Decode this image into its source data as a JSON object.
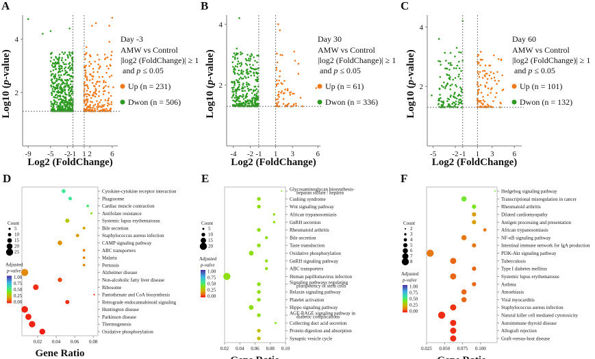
{
  "chart_data": [
    {
      "panel": "A",
      "type": "scatter",
      "title": "Day -3",
      "subtitle": "AMW vs Control",
      "criteria_line1": "|log2 (FoldChange)| ≥ 1",
      "criteria_line2": "and p ≤ 0.05",
      "xlabel": "Log2 (FoldChange)",
      "ylabel": "Log10 (p-value)",
      "xticks": [
        "-9",
        "-5",
        "-2",
        "-1",
        "1",
        "2",
        "6"
      ],
      "xtick_values": [
        -9,
        -5,
        -2,
        -1,
        1,
        2,
        6
      ],
      "yticks": [
        "2",
        "4"
      ],
      "ytick_values": [
        2,
        4
      ],
      "xlim": [
        -10,
        7
      ],
      "ylim": [
        0,
        4.9
      ],
      "threshold_x": [
        -1,
        1
      ],
      "threshold_y": 1.3,
      "legend": [
        {
          "label": "Up (n = 231)",
          "color": "#f07a1a"
        },
        {
          "label": "Dwon (n = 506)",
          "color": "#2e9a22"
        }
      ],
      "up_count": 231,
      "down_count": 506,
      "down_xrange": [
        -5,
        -1
      ],
      "up_xrange": [
        1,
        6
      ],
      "outliers_down": [
        [
          -9,
          4.75
        ],
        [
          -6.4,
          4.2
        ],
        [
          -5,
          4.3
        ],
        [
          -1.6,
          4.4
        ],
        [
          -4.9,
          3.45
        ],
        [
          -1.1,
          3.45
        ]
      ],
      "outliers_up": [
        [
          1.4,
          3.7
        ],
        [
          2.4,
          4.5
        ],
        [
          3.1,
          4.6
        ],
        [
          5.5,
          4.5
        ],
        [
          6,
          4.8
        ],
        [
          5.5,
          3.9
        ],
        [
          6.2,
          2.2
        ],
        [
          5.7,
          3
        ]
      ]
    },
    {
      "panel": "B",
      "type": "scatter",
      "title": "Day 30",
      "subtitle": "AMW vs Control",
      "criteria_line1": "|log2 (FoldChange)| ≥ 1",
      "criteria_line2": "and p ≤ 0.05",
      "xlabel": "Log2 (FoldChange)",
      "ylabel": "Log10 (p-value)",
      "xticks": [
        "-4",
        "-2",
        "-1",
        "1",
        "3",
        "6"
      ],
      "xtick_values": [
        -4,
        -2,
        -1,
        1,
        3,
        6
      ],
      "yticks": [
        "2",
        "4"
      ],
      "ytick_values": [
        2,
        4
      ],
      "xlim": [
        -4.8,
        6.3
      ],
      "ylim": [
        0,
        4.3
      ],
      "threshold_x": [
        -1,
        1
      ],
      "threshold_y": 1.3,
      "legend": [
        {
          "label": "Up (n = 61)",
          "color": "#f07a1a"
        },
        {
          "label": "Dwon (n = 336)",
          "color": "#2e9a22"
        }
      ],
      "up_count": 61,
      "down_count": 336,
      "down_xrange": [
        -4.2,
        -1
      ],
      "up_xrange": [
        1,
        4.2
      ],
      "outliers_down": [
        [
          -3.3,
          4.2
        ],
        [
          -3.6,
          3.2
        ],
        [
          -4.2,
          2.1
        ]
      ],
      "outliers_up": [
        [
          1.3,
          4
        ],
        [
          1.5,
          3.8
        ],
        [
          3.2,
          3.1
        ],
        [
          3.3,
          2.8
        ],
        [
          3.7,
          2.7
        ],
        [
          1.1,
          2.5
        ],
        [
          5.8,
          1.9
        ]
      ]
    },
    {
      "panel": "C",
      "type": "scatter",
      "title": "Day 60",
      "subtitle": "AMW vs Control",
      "criteria_line1": "|log2 (FoldChange)| ≥ 1",
      "criteria_line2": "and p ≤ 0.05",
      "xlabel": "Log2 (FoldChange)",
      "ylabel": "Log10 (p-value)",
      "xticks": [
        "-5",
        "-2",
        "-1",
        "1",
        "3",
        "6"
      ],
      "xtick_values": [
        -5,
        -2,
        -1,
        1,
        3,
        6
      ],
      "yticks": [
        "2",
        "4"
      ],
      "ytick_values": [
        2,
        4
      ],
      "xlim": [
        -5.8,
        7
      ],
      "ylim": [
        0,
        4.4
      ],
      "threshold_x": [
        -1,
        1
      ],
      "threshold_y": 1.3,
      "legend": [
        {
          "label": "Up (n = 101)",
          "color": "#f07a1a"
        },
        {
          "label": "Dwon (n = 132)",
          "color": "#2e9a22"
        }
      ],
      "up_count": 101,
      "down_count": 132,
      "down_xrange": [
        -4.3,
        -1
      ],
      "up_xrange": [
        1,
        4.5
      ],
      "outliers_down": [
        [
          -1,
          4.2
        ],
        [
          -4.2,
          3.6
        ],
        [
          -1.8,
          3.3
        ],
        [
          -5.2,
          1.7
        ]
      ],
      "outliers_up": [
        [
          4.5,
          1.9
        ],
        [
          3.3,
          2.3
        ],
        [
          1.2,
          2.8
        ],
        [
          6.1,
          1.5
        ]
      ]
    },
    {
      "panel": "D",
      "type": "scatter",
      "xlabel": "Gene Ratio",
      "xticks": [
        "0.02",
        "0.04",
        "0.06",
        "0.08"
      ],
      "xtick_values": [
        0.02,
        0.04,
        0.06,
        0.08
      ],
      "xlim": [
        0.003,
        0.085
      ],
      "size_legend_title": "Count",
      "size_legend": [
        5,
        10,
        15,
        20,
        25
      ],
      "size_range": [
        2,
        25
      ],
      "color_legend_title": "Adjusted",
      "color_legend_title2": "p-valve",
      "color_ticks": [
        "1.00",
        "0.75",
        "0.50",
        "0.25",
        "0.00"
      ],
      "pathways": [
        {
          "name": "Cytokine-cytokine receptor interaction",
          "ratio": 0.048,
          "count": 12,
          "padj": 0.55
        },
        {
          "name": "Phagosome",
          "ratio": 0.055,
          "count": 11,
          "padj": 0.55
        },
        {
          "name": "Cardiac muscle contraction",
          "ratio": 0.074,
          "count": 7,
          "padj": 0.5
        },
        {
          "name": "Antifolate resistance",
          "ratio": 0.078,
          "count": 5,
          "padj": 0.38
        },
        {
          "name": "Systemic lupus erythematosus",
          "ratio": 0.052,
          "count": 13,
          "padj": 0.3
        },
        {
          "name": "Bile secretion",
          "ratio": 0.07,
          "count": 8,
          "padj": 0.22
        },
        {
          "name": "Staphylococcus aureus infection",
          "ratio": 0.063,
          "count": 10,
          "padj": 0.2
        },
        {
          "name": "CAMP signaling pathway",
          "ratio": 0.044,
          "count": 15,
          "padj": 0.18
        },
        {
          "name": "ABC transporters",
          "ratio": 0.07,
          "count": 7,
          "padj": 0.15
        },
        {
          "name": "Malaria",
          "ratio": 0.07,
          "count": 7,
          "padj": 0.15
        },
        {
          "name": "Pertussis",
          "ratio": 0.07,
          "count": 7,
          "padj": 0.15
        },
        {
          "name": "Alzheimer disease",
          "ratio": 0.006,
          "count": 25,
          "padj": 0.16
        },
        {
          "name": "Non-alcoholic fatty liver disease",
          "ratio": 0.044,
          "count": 14,
          "padj": 0.06
        },
        {
          "name": "Ribosome",
          "ratio": 0.018,
          "count": 19,
          "padj": 0.03
        },
        {
          "name": "Pantothenate and CoA biosynthesis",
          "ratio": 0.081,
          "count": 3,
          "padj": 0.04
        },
        {
          "name": "Retrograde endocannabinoid signaling",
          "ratio": 0.052,
          "count": 13,
          "padj": 0.03
        },
        {
          "name": "Huntington disease",
          "ratio": 0.006,
          "count": 23,
          "padj": 0.02
        },
        {
          "name": "Parkinson disease",
          "ratio": 0.01,
          "count": 21,
          "padj": 0.02
        },
        {
          "name": "Thermogenesis",
          "ratio": 0.014,
          "count": 22,
          "padj": 0.02
        },
        {
          "name": "Oxidative phosphorylation",
          "ratio": 0.025,
          "count": 20,
          "padj": 0.01
        }
      ]
    },
    {
      "panel": "E",
      "type": "scatter",
      "xlabel": "Gene Ratio",
      "xticks": [
        "0.02",
        "0.04",
        "0.06",
        "0.08",
        "0.10"
      ],
      "xtick_values": [
        0.02,
        0.04,
        0.06,
        0.08,
        0.1
      ],
      "xlim": [
        0.02,
        0.1
      ],
      "size_legend_title": "Count",
      "size_legend": [
        5,
        10,
        15,
        20
      ],
      "size_range": [
        3,
        20
      ],
      "color_legend_title": "Adjusted",
      "color_legend_title2": "p-valve",
      "color_ticks": [
        "1.00",
        "0.75",
        "0.50",
        "0.25",
        "0.00"
      ],
      "pathways": [
        {
          "name": "Glycosaminoglycan biosynthesis-\nheparan sulfate / heparin",
          "ratio": 0.095,
          "count": 3,
          "padj": 0.38
        },
        {
          "name": "Cushing syndrome",
          "ratio": 0.065,
          "count": 10,
          "padj": 0.36
        },
        {
          "name": "Wnt signaling pathway",
          "ratio": 0.065,
          "count": 10,
          "padj": 0.36
        },
        {
          "name": "African trypanosomiasis",
          "ratio": 0.085,
          "count": 6,
          "padj": 0.36
        },
        {
          "name": "GnRH secretion",
          "ratio": 0.085,
          "count": 6,
          "padj": 0.36
        },
        {
          "name": "Rheumatoid arthritis",
          "ratio": 0.065,
          "count": 10,
          "padj": 0.36
        },
        {
          "name": "Bile secretion",
          "ratio": 0.075,
          "count": 8,
          "padj": 0.36
        },
        {
          "name": "Taste transduction",
          "ratio": 0.065,
          "count": 10,
          "padj": 0.36
        },
        {
          "name": "Oxidative phosphorylation",
          "ratio": 0.055,
          "count": 13,
          "padj": 0.36
        },
        {
          "name": "GnRH signaling pathway",
          "ratio": 0.075,
          "count": 8,
          "padj": 0.36
        },
        {
          "name": "ABC transporters",
          "ratio": 0.075,
          "count": 8,
          "padj": 0.36
        },
        {
          "name": "Human papillomavirus infection",
          "ratio": 0.023,
          "count": 20,
          "padj": 0.36
        },
        {
          "name": "Signaling pathways regulating\npluripotency of stem cells",
          "ratio": 0.065,
          "count": 10,
          "padj": 0.36
        },
        {
          "name": "Relaxin signaling pathway",
          "ratio": 0.065,
          "count": 10,
          "padj": 0.36
        },
        {
          "name": "Platelet activation",
          "ratio": 0.065,
          "count": 10,
          "padj": 0.36
        },
        {
          "name": "Hippo signaling pathway",
          "ratio": 0.055,
          "count": 13,
          "padj": 0.36
        },
        {
          "name": "AGE-RAGE signaling pathway in\ndiabetic complications",
          "ratio": 0.065,
          "count": 10,
          "padj": 0.36
        },
        {
          "name": "Collecting duct acid secretion",
          "ratio": 0.087,
          "count": 5,
          "padj": 0.38
        },
        {
          "name": "Protein digestion and absorption",
          "ratio": 0.065,
          "count": 10,
          "padj": 0.28
        },
        {
          "name": "Synaptic vesicle cycle",
          "ratio": 0.065,
          "count": 10,
          "padj": 0.28
        }
      ]
    },
    {
      "panel": "F",
      "type": "scatter",
      "xlabel": "Gene Ratio",
      "xticks": [
        "0.025",
        "0.050",
        "0.075",
        "0.100"
      ],
      "xtick_values": [
        0.025,
        0.05,
        0.075,
        0.1
      ],
      "xlim": [
        0.025,
        0.123
      ],
      "size_legend_title": "Count",
      "size_legend": [
        2,
        3,
        4,
        5,
        6,
        7,
        8
      ],
      "size_range": [
        2,
        8
      ],
      "color_legend_title": "Adjusted",
      "color_legend_title2": "p-valve",
      "color_ticks": [
        "1.00",
        "0.75",
        "0.50",
        "0.25",
        "0.00"
      ],
      "pathways": [
        {
          "name": "Hedgehog signaling pathway",
          "ratio": 0.12,
          "count": 2,
          "padj": 0.42
        },
        {
          "name": "Transcriptional misregulation in cancer",
          "ratio": 0.077,
          "count": 6,
          "padj": 0.42
        },
        {
          "name": "Rheumatoid arthritis",
          "ratio": 0.091,
          "count": 5,
          "padj": 0.4
        },
        {
          "name": "Dilated cardiomyopathy",
          "ratio": 0.091,
          "count": 5,
          "padj": 0.2
        },
        {
          "name": "Antigen processing and presentation",
          "ratio": 0.091,
          "count": 5,
          "padj": 0.2
        },
        {
          "name": "African trypanosomiasis",
          "ratio": 0.106,
          "count": 4,
          "padj": 0.12
        },
        {
          "name": "NF-κB signaling pathway",
          "ratio": 0.077,
          "count": 6,
          "padj": 0.12
        },
        {
          "name": "Intestinal immune network for IgA production",
          "ratio": 0.091,
          "count": 5,
          "padj": 0.12
        },
        {
          "name": "PI3K-Akt signaling pathway",
          "ratio": 0.03,
          "count": 8,
          "padj": 0.12
        },
        {
          "name": "Tuberculosis",
          "ratio": 0.062,
          "count": 7,
          "padj": 0.1
        },
        {
          "name": "Type I diabetes mellitus",
          "ratio": 0.091,
          "count": 5,
          "padj": 0.1
        },
        {
          "name": "Systemic lupus erythematosus",
          "ratio": 0.062,
          "count": 7,
          "padj": 0.1
        },
        {
          "name": "Asthma",
          "ratio": 0.091,
          "count": 5,
          "padj": 0.1
        },
        {
          "name": "Amoebiasis",
          "ratio": 0.077,
          "count": 6,
          "padj": 0.1
        },
        {
          "name": "Viral myocarditis",
          "ratio": 0.077,
          "count": 6,
          "padj": 0.1
        },
        {
          "name": "Staphylococcus aureus infection",
          "ratio": 0.062,
          "count": 7,
          "padj": 0.04
        },
        {
          "name": "Natural killer cell mediated cytotoxicity",
          "ratio": 0.046,
          "count": 8,
          "padj": 0.03
        },
        {
          "name": "Autoimmune thyroid disease",
          "ratio": 0.062,
          "count": 7,
          "padj": 0.03
        },
        {
          "name": "Allograft rejection",
          "ratio": 0.062,
          "count": 7,
          "padj": 0.03
        },
        {
          "name": "Graft-versus-host disease",
          "ratio": 0.062,
          "count": 7,
          "padj": 0.03
        }
      ]
    }
  ]
}
